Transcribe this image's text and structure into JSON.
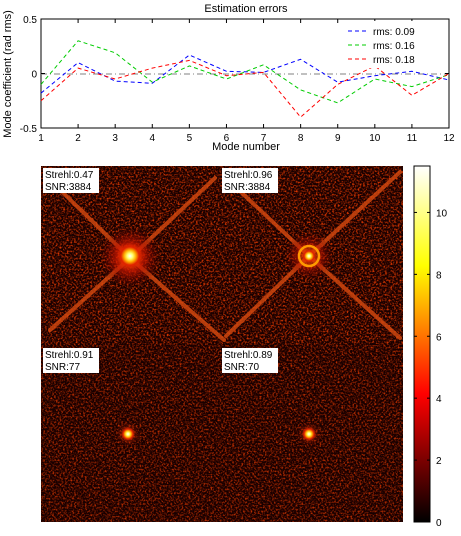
{
  "chart_data": [
    {
      "type": "line",
      "title": "Estimation errors",
      "xlabel": "Mode number",
      "ylabel": "Mode coefficient (rad rms)",
      "xlim": [
        1,
        12
      ],
      "ylim": [
        -0.5,
        0.5
      ],
      "xticks": [
        "1",
        "2",
        "3",
        "4",
        "5",
        "6",
        "7",
        "8",
        "9",
        "10",
        "11",
        "12"
      ],
      "yticks": [
        "0.5",
        "0",
        "-0.5"
      ],
      "grid": false,
      "legend_position": "top-right",
      "reference_line": {
        "y": 0,
        "style": "dash-dot",
        "color": "#808080"
      },
      "x": [
        1,
        2,
        3,
        4,
        5,
        6,
        7,
        8,
        9,
        10,
        11,
        12
      ],
      "series": [
        {
          "name": "rms: 0.09",
          "color": "#0000ff",
          "style": "dashed",
          "values": [
            -0.18,
            0.1,
            -0.07,
            -0.09,
            0.17,
            0.02,
            0.01,
            0.13,
            -0.08,
            -0.02,
            0.02,
            -0.06
          ]
        },
        {
          "name": "rms: 0.16",
          "color": "#00cc00",
          "style": "dashed",
          "values": [
            -0.1,
            0.3,
            0.19,
            -0.08,
            0.07,
            -0.05,
            0.08,
            -0.15,
            -0.27,
            -0.05,
            -0.12,
            -0.01
          ]
        },
        {
          "name": "rms: 0.18",
          "color": "#ff0000",
          "style": "dashed",
          "values": [
            -0.25,
            0.05,
            -0.05,
            0.05,
            0.12,
            -0.02,
            0.01,
            -0.4,
            -0.1,
            0.07,
            -0.2,
            0.0
          ]
        }
      ]
    },
    {
      "type": "heatmap",
      "colormap": "hot",
      "colorbar": {
        "ticks": [
          "10",
          "8",
          "6",
          "4",
          "2",
          "0"
        ],
        "range": [
          0,
          11.5
        ]
      },
      "panels": [
        {
          "label1": "Strehl:0.47",
          "label2": "SNR:3884"
        },
        {
          "label1": "Strehl:0.96",
          "label2": "SNR:3884"
        },
        {
          "label1": "Strehl:0.91",
          "label2": "SNR:77"
        },
        {
          "label1": "Strehl:0.89",
          "label2": "SNR:70"
        }
      ]
    }
  ]
}
